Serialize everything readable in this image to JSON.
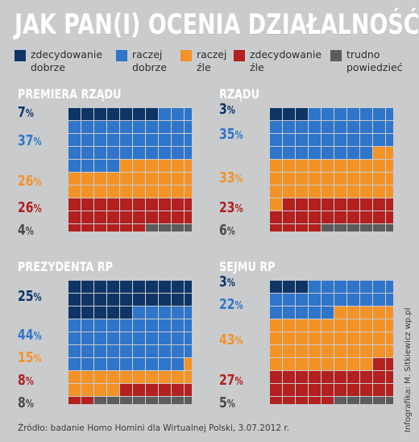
{
  "title": "JAK PAN(I) OCENIA DZIAŁALNOŚĆ:",
  "legend": [
    {
      "label": "zdecydowanie dobrze",
      "color": "#0f3566"
    },
    {
      "label": "raczej dobrze",
      "color": "#2f75c9"
    },
    {
      "label": "raczej źle",
      "color": "#f39327"
    },
    {
      "label": "zdecydowanie źle",
      "color": "#b2201f"
    },
    {
      "label": "trudno powiedzieć",
      "color": "#5c5c5c"
    }
  ],
  "chart_data": [
    {
      "type": "waffle",
      "title": "PREMIERA RZĄDU",
      "categories": [
        "zdecydowanie dobrze",
        "raczej dobrze",
        "raczej źle",
        "zdecydowanie źle",
        "trudno powiedzieć"
      ],
      "values": [
        7,
        37,
        26,
        26,
        4
      ],
      "value_labels": [
        "7",
        "37",
        "26",
        "26",
        "4"
      ],
      "unit": "%"
    },
    {
      "type": "waffle",
      "title": "RZĄDU",
      "categories": [
        "zdecydowanie dobrze",
        "raczej dobrze",
        "raczej źle",
        "zdecydowanie źle",
        "trudno powiedzieć"
      ],
      "values": [
        3,
        35,
        33,
        23,
        6
      ],
      "value_labels": [
        "3",
        "35",
        "33",
        "23",
        "6"
      ],
      "unit": "%"
    },
    {
      "type": "waffle",
      "title": "PREZYDENTA RP",
      "categories": [
        "zdecydowanie dobrze",
        "raczej dobrze",
        "raczej źle",
        "zdecydowanie źle",
        "trudno powiedzieć"
      ],
      "values": [
        25,
        44,
        15,
        8,
        8
      ],
      "value_labels": [
        "25",
        "44",
        "15",
        "8",
        "8"
      ],
      "unit": "%"
    },
    {
      "type": "waffle",
      "title": "SEJMU RP",
      "categories": [
        "zdecydowanie dobrze",
        "raczej dobrze",
        "raczej źle",
        "zdecydowanie źle",
        "trudno powiedzieć"
      ],
      "values": [
        3,
        22,
        43,
        27,
        5
      ],
      "value_labels": [
        "3",
        "22",
        "43",
        "27",
        "5"
      ],
      "unit": "%"
    }
  ],
  "source": "Źródło: badanie Homo Homini dla Wirtualnej Polski, 3.07.2012 r.",
  "credit": "Infografika: M. Sitkiewicz wp.pl"
}
